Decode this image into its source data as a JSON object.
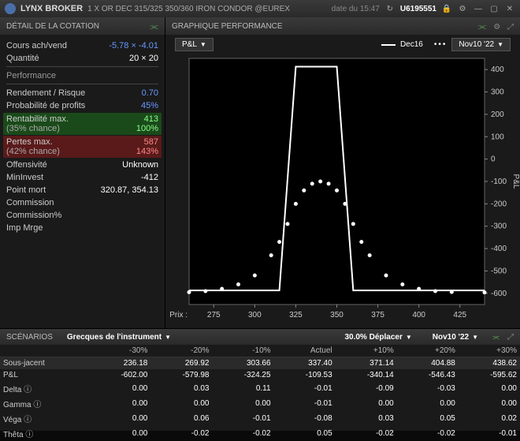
{
  "titlebar": {
    "brand": "LYNX BROKER",
    "instrument": "1 X OR DEC 315/325 350/360 IRON CONDOR @EUREX",
    "timestamp": "date du 15:47",
    "account": "U6195551"
  },
  "quote_panel": {
    "title": "DÉTAIL DE LA COTATION",
    "bid_ask_label": "Cours ach/vend",
    "bid_ask_value": "-5.78 × -4.01",
    "size_label": "Quantité",
    "size_value": "20 × 20",
    "perf_label": "Performance",
    "rows": [
      {
        "label": "Rendement / Risque",
        "value": "0.70",
        "cls": "blue"
      },
      {
        "label": "Probabilité de profits",
        "value": "45%",
        "cls": "blue"
      }
    ],
    "profit_box": {
      "label": "Rentabilité max.",
      "sub": "(35% chance)",
      "v1": "413",
      "v2": "100%"
    },
    "loss_box": {
      "label": "Pertes max.",
      "sub": "(42% chance)",
      "v1": "587",
      "v2": "143%"
    },
    "rows2": [
      {
        "label": "Offensivité",
        "value": "Unknown"
      },
      {
        "label": "MinInvest",
        "value": "-412"
      },
      {
        "label": "Point mort",
        "value": "320.87, 354.13"
      },
      {
        "label": "Commission",
        "value": ""
      },
      {
        "label": "Commission%",
        "value": ""
      },
      {
        "label": "Imp Mrge",
        "value": ""
      }
    ]
  },
  "chart_panel": {
    "title": "GRAPHIQUE PERFORMANCE",
    "metric": "P&L",
    "series1_label": "Dec16",
    "series2_label": "Nov10 '22",
    "x_label": "Prix :",
    "x_ticks": [
      275,
      300,
      325,
      350,
      375,
      400,
      425
    ],
    "x_range": [
      260,
      440
    ],
    "y_ticks": [
      400,
      300,
      200,
      100,
      0,
      -100,
      -200,
      -300,
      -400,
      -500,
      -600
    ],
    "y_range": [
      -650,
      450
    ],
    "y_label": "P&L",
    "solid_line": [
      [
        260,
        -587
      ],
      [
        315,
        -587
      ],
      [
        325,
        413
      ],
      [
        350,
        413
      ],
      [
        360,
        -587
      ],
      [
        440,
        -587
      ]
    ],
    "dotted_line": [
      [
        260,
        -595
      ],
      [
        270,
        -590
      ],
      [
        280,
        -580
      ],
      [
        290,
        -560
      ],
      [
        300,
        -520
      ],
      [
        310,
        -430
      ],
      [
        315,
        -370
      ],
      [
        320,
        -290
      ],
      [
        325,
        -200
      ],
      [
        330,
        -140
      ],
      [
        335,
        -110
      ],
      [
        340,
        -100
      ],
      [
        345,
        -110
      ],
      [
        350,
        -140
      ],
      [
        355,
        -200
      ],
      [
        360,
        -290
      ],
      [
        365,
        -370
      ],
      [
        370,
        -430
      ],
      [
        380,
        -520
      ],
      [
        390,
        -560
      ],
      [
        400,
        -580
      ],
      [
        410,
        -590
      ],
      [
        420,
        -594
      ],
      [
        440,
        -596
      ]
    ],
    "colors": {
      "bg": "#000000",
      "axis": "#888888",
      "line": "#ffffff",
      "dot": "#ffffff"
    }
  },
  "scenarios": {
    "title": "SCÉNARIOS",
    "greeks_label": "Grecques de l'instrument",
    "move_label": "30.0% Déplacer",
    "date_label": "Nov10 '22",
    "headers": [
      "-30%",
      "-20%",
      "-10%",
      "Actuel",
      "+10%",
      "+20%",
      "+30%"
    ],
    "rows": [
      {
        "label": "Sous-jacent",
        "vals": [
          "236.18",
          "269.92",
          "303.66",
          "337.40",
          "371.14",
          "404.88",
          "438.62"
        ],
        "hl": true
      },
      {
        "label": "P&L",
        "vals": [
          "-602.00",
          "-579.98",
          "-324.25",
          "-109.53",
          "-340.14",
          "-546.43",
          "-595.62"
        ]
      },
      {
        "label": "Delta ⓘ",
        "vals": [
          "0.00",
          "0.03",
          "0.11",
          "-0.01",
          "-0.09",
          "-0.03",
          "0.00"
        ]
      },
      {
        "label": "Gamma ⓘ",
        "vals": [
          "0.00",
          "0.00",
          "0.00",
          "-0.01",
          "0.00",
          "0.00",
          "0.00"
        ]
      },
      {
        "label": "Véga ⓘ",
        "vals": [
          "0.00",
          "0.06",
          "-0.01",
          "-0.08",
          "0.03",
          "0.05",
          "0.02"
        ]
      },
      {
        "label": "Thêta ⓘ",
        "vals": [
          "0.00",
          "-0.02",
          "-0.02",
          "0.05",
          "-0.02",
          "-0.02",
          "-0.01"
        ]
      }
    ]
  }
}
